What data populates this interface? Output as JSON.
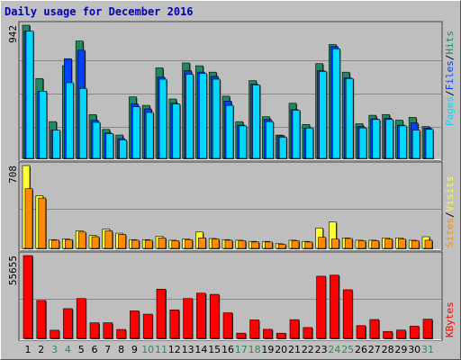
{
  "title": "Daily usage for December 2016",
  "colors": {
    "background": "#c0c0c0",
    "title": "#0000b0",
    "hits": "#1e8a5e",
    "files": "#0040ff",
    "pages": "#00d8ff",
    "visits": "#ffff33",
    "sites": "#ff8c00",
    "kbytes": "#ff0000",
    "weekday_label": "#000000",
    "weekend_label": "#2e8b57"
  },
  "legend": {
    "top": [
      "Pages",
      "/",
      "Files",
      "/",
      "Hits"
    ],
    "middle": [
      "Sites",
      "/",
      "Visits"
    ],
    "bottom": [
      "KBytes"
    ]
  },
  "chart_data": [
    {
      "type": "bar",
      "panel": "top",
      "max_label": "942",
      "ylim": [
        0,
        942
      ],
      "categories": [
        "1",
        "2",
        "3",
        "4",
        "5",
        "6",
        "7",
        "8",
        "9",
        "10",
        "11",
        "12",
        "13",
        "14",
        "15",
        "16",
        "17",
        "18",
        "19",
        "20",
        "21",
        "22",
        "23",
        "24",
        "25",
        "26",
        "27",
        "28",
        "29",
        "30",
        "31"
      ],
      "series": [
        {
          "name": "Hits",
          "values": [
            942,
            565,
            260,
            655,
            830,
            310,
            205,
            165,
            435,
            375,
            640,
            420,
            675,
            655,
            610,
            440,
            260,
            550,
            295,
            165,
            390,
            240,
            670,
            805,
            610,
            245,
            305,
            310,
            270,
            290,
            225
          ]
        },
        {
          "name": "Files",
          "values": [
            900,
            475,
            200,
            705,
            765,
            270,
            180,
            140,
            385,
            350,
            575,
            390,
            620,
            610,
            580,
            405,
            235,
            525,
            275,
            160,
            345,
            215,
            620,
            790,
            570,
            225,
            280,
            285,
            235,
            250,
            215
          ]
        },
        {
          "name": "Pages",
          "values": [
            900,
            475,
            200,
            535,
            495,
            255,
            175,
            130,
            365,
            325,
            560,
            385,
            595,
            600,
            560,
            375,
            230,
            520,
            260,
            150,
            340,
            215,
            615,
            775,
            565,
            215,
            275,
            275,
            230,
            200,
            205
          ]
        }
      ]
    },
    {
      "type": "bar",
      "panel": "middle",
      "max_label": "708",
      "ylim": [
        0,
        708
      ],
      "categories": [
        "1",
        "2",
        "3",
        "4",
        "5",
        "6",
        "7",
        "8",
        "9",
        "10",
        "11",
        "12",
        "13",
        "14",
        "15",
        "16",
        "17",
        "18",
        "19",
        "20",
        "21",
        "22",
        "23",
        "24",
        "25",
        "26",
        "27",
        "28",
        "29",
        "30",
        "31"
      ],
      "series": [
        {
          "name": "Visits",
          "values": [
            708,
            450,
            75,
            80,
            150,
            110,
            165,
            130,
            75,
            75,
            105,
            70,
            80,
            140,
            85,
            75,
            70,
            60,
            60,
            40,
            70,
            60,
            175,
            225,
            90,
            70,
            70,
            90,
            90,
            70,
            100
          ]
        },
        {
          "name": "Sites",
          "values": [
            510,
            430,
            70,
            75,
            140,
            100,
            150,
            120,
            70,
            70,
            90,
            65,
            75,
            90,
            80,
            70,
            65,
            55,
            55,
            35,
            65,
            55,
            95,
            80,
            85,
            65,
            65,
            80,
            80,
            65,
            70
          ]
        }
      ]
    },
    {
      "type": "bar",
      "panel": "bottom",
      "max_label": "55655",
      "ylim": [
        0,
        55655
      ],
      "categories": [
        "1",
        "2",
        "3",
        "4",
        "5",
        "6",
        "7",
        "8",
        "9",
        "10",
        "11",
        "12",
        "13",
        "14",
        "15",
        "16",
        "17",
        "18",
        "19",
        "20",
        "21",
        "22",
        "23",
        "24",
        "25",
        "26",
        "27",
        "28",
        "29",
        "30",
        "31"
      ],
      "series": [
        {
          "name": "KBytes",
          "values": [
            55655,
            25500,
            5500,
            20000,
            26800,
            10500,
            10500,
            6000,
            18500,
            16300,
            33100,
            19200,
            26800,
            30400,
            29600,
            17200,
            3500,
            12400,
            6100,
            3500,
            12600,
            7300,
            41800,
            42500,
            32700,
            8600,
            12700,
            4700,
            5600,
            8200,
            12900
          ]
        }
      ]
    }
  ],
  "weekend_days": [
    3,
    4,
    10,
    11,
    17,
    18,
    24,
    25,
    31
  ]
}
